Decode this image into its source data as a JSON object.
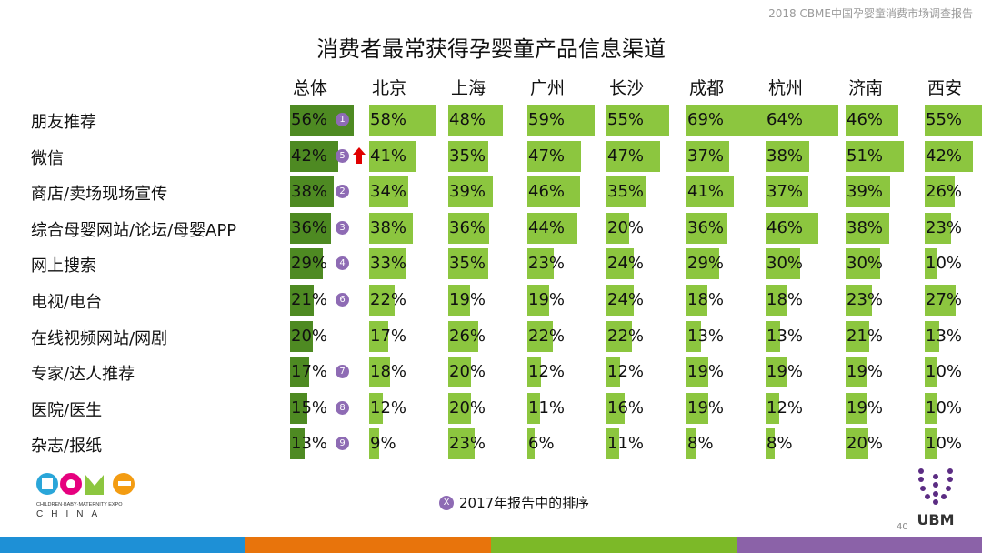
{
  "header_note": "2018 CBME中国孕婴童消费市场调查报告",
  "chart_data": {
    "type": "table",
    "title": "消费者最常获得孕婴童产品信息渠道",
    "columns": [
      "总体",
      "北京",
      "上海",
      "广州",
      "长沙",
      "成都",
      "杭州",
      "济南",
      "西安"
    ],
    "rows": [
      {
        "label": "朋友推荐",
        "rank_2017": "1",
        "up": false,
        "values": [
          56,
          58,
          48,
          59,
          55,
          69,
          64,
          46,
          55
        ]
      },
      {
        "label": "微信",
        "rank_2017": "5",
        "up": true,
        "values": [
          42,
          41,
          35,
          47,
          47,
          37,
          38,
          51,
          42
        ]
      },
      {
        "label": "商店/卖场现场宣传",
        "rank_2017": "2",
        "up": false,
        "values": [
          38,
          34,
          39,
          46,
          35,
          41,
          37,
          39,
          26
        ]
      },
      {
        "label": "综合母婴网站/论坛/母婴APP",
        "rank_2017": "3",
        "up": false,
        "values": [
          36,
          38,
          36,
          44,
          20,
          36,
          46,
          38,
          23
        ]
      },
      {
        "label": "网上搜索",
        "rank_2017": "4",
        "up": false,
        "values": [
          29,
          33,
          35,
          23,
          24,
          29,
          30,
          30,
          10
        ]
      },
      {
        "label": "电视/电台",
        "rank_2017": "6",
        "up": false,
        "values": [
          21,
          22,
          19,
          19,
          24,
          18,
          18,
          23,
          27
        ]
      },
      {
        "label": "在线视频网站/网剧",
        "rank_2017": "",
        "up": false,
        "values": [
          20,
          17,
          26,
          22,
          22,
          13,
          13,
          21,
          13
        ]
      },
      {
        "label": "专家/达人推荐",
        "rank_2017": "7",
        "up": false,
        "values": [
          17,
          18,
          20,
          12,
          12,
          19,
          19,
          19,
          10
        ]
      },
      {
        "label": "医院/医生",
        "rank_2017": "8",
        "up": false,
        "values": [
          15,
          12,
          20,
          11,
          16,
          19,
          12,
          19,
          10
        ]
      },
      {
        "label": "杂志/报纸",
        "rank_2017": "9",
        "up": false,
        "values": [
          13,
          9,
          23,
          6,
          11,
          8,
          8,
          20,
          10
        ]
      }
    ],
    "unit": "%",
    "colors": {
      "total_bar": "#4e8a22",
      "city_bar": "#8cc63f",
      "rank_badge": "#8e6bb4",
      "up_arrow": "#e00000"
    }
  },
  "legend": {
    "badge": "X",
    "text": "2017年报告中的排序"
  },
  "page_number": "40",
  "logo_left": {
    "brand": "CBME",
    "tagline": "CHILDREN·BABY·MATERNITY EXPO",
    "sub": "CHINA"
  },
  "logo_right": {
    "brand": "UBM"
  },
  "stripe_colors": [
    "#1e90d6",
    "#e8740c",
    "#7cb928",
    "#8b62a8"
  ]
}
